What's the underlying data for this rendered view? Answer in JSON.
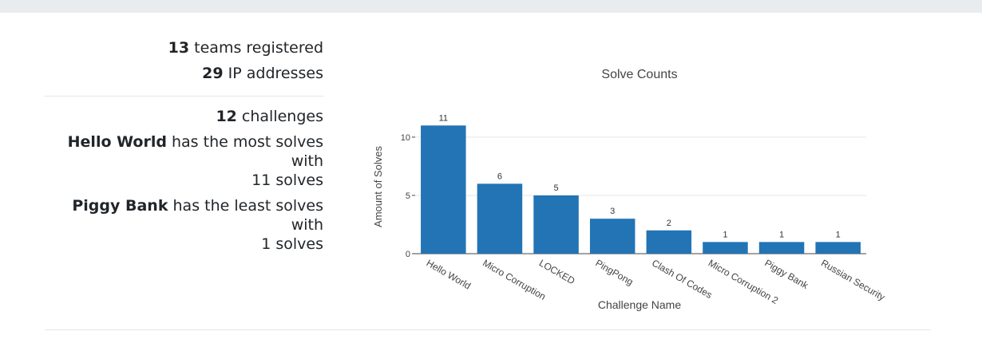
{
  "stats": {
    "teams_count": "13",
    "teams_label": " teams registered",
    "ip_count": "29",
    "ip_label": " IP addresses",
    "challenges_count": "12",
    "challenges_label": " challenges",
    "most_solved_name": "Hello World",
    "most_solved_text": " has the most solves with",
    "most_solved_count_text": "11 solves",
    "least_solved_name": "Piggy Bank",
    "least_solved_text": " has the least solves with",
    "least_solved_count_text": "1 solves"
  },
  "chart_data": {
    "type": "bar",
    "title": "Solve Counts",
    "xlabel": "Challenge Name",
    "ylabel": "Amount of Solves",
    "categories": [
      "Hello World",
      "Micro Corruption",
      "LOCKED",
      "PingPong",
      "Clash Of Codes",
      "Micro Corruption 2",
      "Piggy Bank",
      "Russian Security"
    ],
    "values": [
      11,
      6,
      5,
      3,
      2,
      1,
      1,
      1
    ],
    "ylim": [
      0,
      11.5
    ],
    "yticks": [
      0,
      5,
      10
    ],
    "grid": true,
    "bar_color": "#2274b5"
  }
}
